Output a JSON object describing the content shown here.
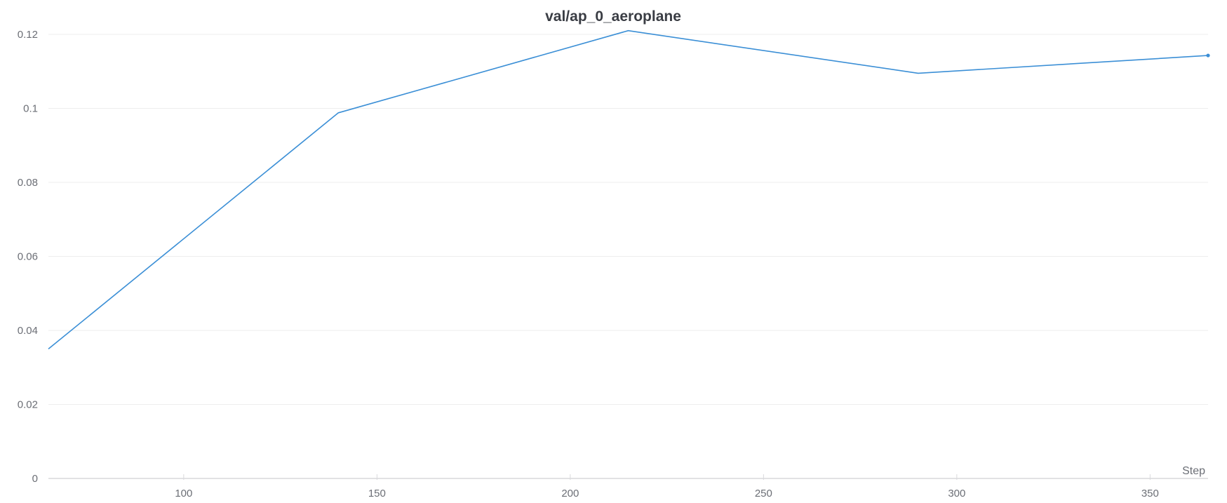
{
  "chart_data": {
    "type": "line",
    "title": "val/ap_0_aeroplane",
    "xlabel": "Step",
    "ylabel": "",
    "xlim": [
      65,
      365
    ],
    "ylim": [
      0,
      0.12
    ],
    "x_ticks": [
      100,
      150,
      200,
      250,
      300,
      350
    ],
    "x_tick_labels": [
      "100",
      "150",
      "200",
      "250",
      "300",
      "350"
    ],
    "y_ticks": [
      0,
      0.02,
      0.04,
      0.06,
      0.08,
      0.1,
      0.12
    ],
    "y_tick_labels": [
      "0",
      "0.02",
      "0.04",
      "0.06",
      "0.08",
      "0.1",
      "0.12"
    ],
    "grid": true,
    "legend": "none",
    "series": [
      {
        "color": "#3b8fd6",
        "x": [
          65,
          140,
          215,
          290,
          365
        ],
        "y": [
          0.035,
          0.0988,
          0.121,
          0.1095,
          0.1143
        ]
      }
    ]
  }
}
